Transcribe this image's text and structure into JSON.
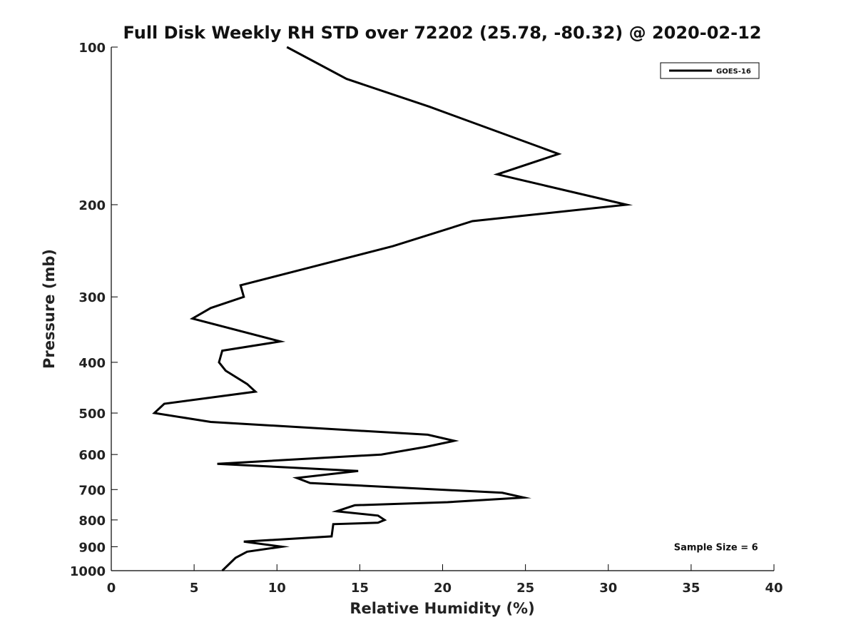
{
  "chart_data": {
    "type": "line",
    "title": "Full Disk Weekly RH STD over 72202 (25.78, -80.32) @ 2020-02-12",
    "xlabel": "Relative Humidity (%)",
    "ylabel": "Pressure (mb)",
    "xlim": [
      0,
      40
    ],
    "ylim": [
      100,
      1000
    ],
    "y_scale": "log",
    "y_inverted": true,
    "x_ticks": [
      0,
      5,
      10,
      15,
      20,
      25,
      30,
      35,
      40
    ],
    "y_ticks": [
      100,
      200,
      300,
      400,
      500,
      600,
      700,
      800,
      900,
      1000
    ],
    "grid": false,
    "legend_position": "top-right",
    "series": [
      {
        "name": "GOES-16",
        "color": "#000000",
        "x": [
          10.6,
          14.2,
          19.2,
          27.0,
          23.3,
          31.1,
          21.8,
          17.0,
          11.7,
          7.8,
          8.0,
          6.0,
          4.9,
          10.2,
          6.7,
          6.5,
          6.9,
          8.2,
          8.7,
          3.2,
          2.6,
          6.0,
          19.1,
          20.7,
          19.0,
          16.3,
          6.4,
          14.9,
          11.2,
          12.0,
          23.6,
          24.9,
          20.3,
          14.7,
          13.6,
          16.1,
          16.5,
          16.1,
          13.4,
          13.3,
          8.0,
          10.3,
          8.2,
          7.5,
          6.7
        ],
        "y": [
          100,
          115,
          130,
          160,
          175,
          200,
          215,
          240,
          265,
          285,
          300,
          315,
          330,
          365,
          380,
          400,
          415,
          440,
          455,
          480,
          500,
          520,
          550,
          565,
          580,
          600,
          625,
          645,
          665,
          680,
          710,
          725,
          740,
          750,
          770,
          785,
          800,
          810,
          815,
          860,
          880,
          900,
          920,
          945,
          1000
        ]
      }
    ],
    "annotations": [
      {
        "text": "Sample Size = 6",
        "x": 36.5,
        "y": 900
      }
    ]
  }
}
